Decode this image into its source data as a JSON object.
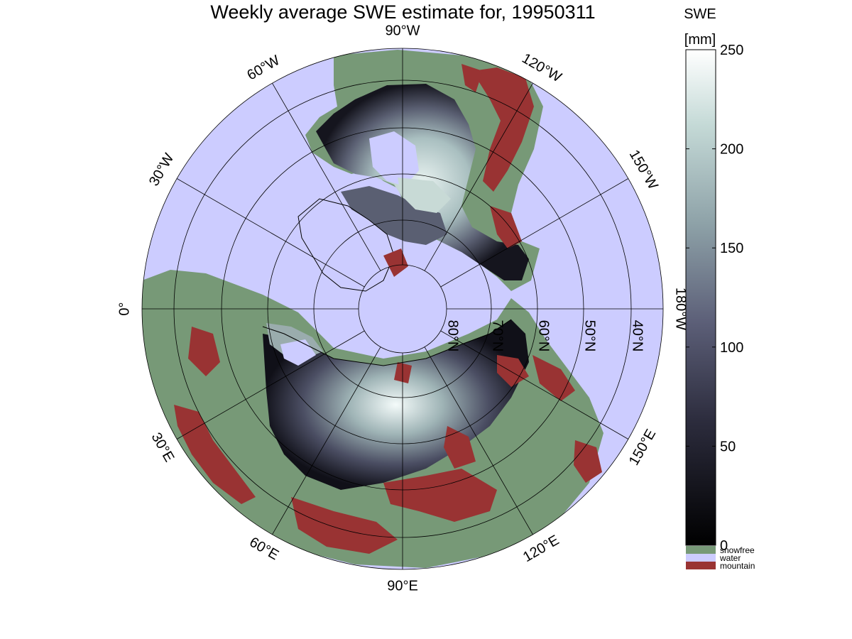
{
  "title": "Weekly average SWE estimate for, 19950311",
  "colors": {
    "water": "#ccccff",
    "snowfree": "#779977",
    "mountain": "#993333",
    "snow_low": "#0a0a0f",
    "snow_high": "#ffffff"
  },
  "map": {
    "projection": "north-polar-stereographic",
    "longitude_labels": [
      {
        "text": "90°W",
        "lon": 90
      },
      {
        "text": "120°W",
        "lon": 120
      },
      {
        "text": "150°W",
        "lon": 150
      },
      {
        "text": "180°W",
        "lon": 180
      },
      {
        "text": "150°E",
        "lon": 210
      },
      {
        "text": "120°E",
        "lon": 240
      },
      {
        "text": "90°E",
        "lon": 270
      },
      {
        "text": "60°E",
        "lon": 300
      },
      {
        "text": "30°E",
        "lon": 330
      },
      {
        "text": "0°",
        "lon": 0
      },
      {
        "text": "30°W",
        "lon": 30
      },
      {
        "text": "60°W",
        "lon": 60
      }
    ],
    "latitude_labels": [
      {
        "text": "80°N",
        "lat": 80
      },
      {
        "text": "70°N",
        "lat": 70
      },
      {
        "text": "60°N",
        "lat": 60
      },
      {
        "text": "50°N",
        "lat": 50
      },
      {
        "text": "40°N",
        "lat": 40
      }
    ]
  },
  "colorbar": {
    "title": "SWE",
    "unit": "[mm]",
    "range": [
      0,
      250
    ],
    "ticks": [
      "0",
      "50",
      "100",
      "150",
      "200",
      "250"
    ],
    "categories": [
      {
        "label": "snowfree",
        "color": "#779977"
      },
      {
        "label": "water",
        "color": "#ccccff"
      },
      {
        "label": "mountain",
        "color": "#993333"
      }
    ]
  }
}
